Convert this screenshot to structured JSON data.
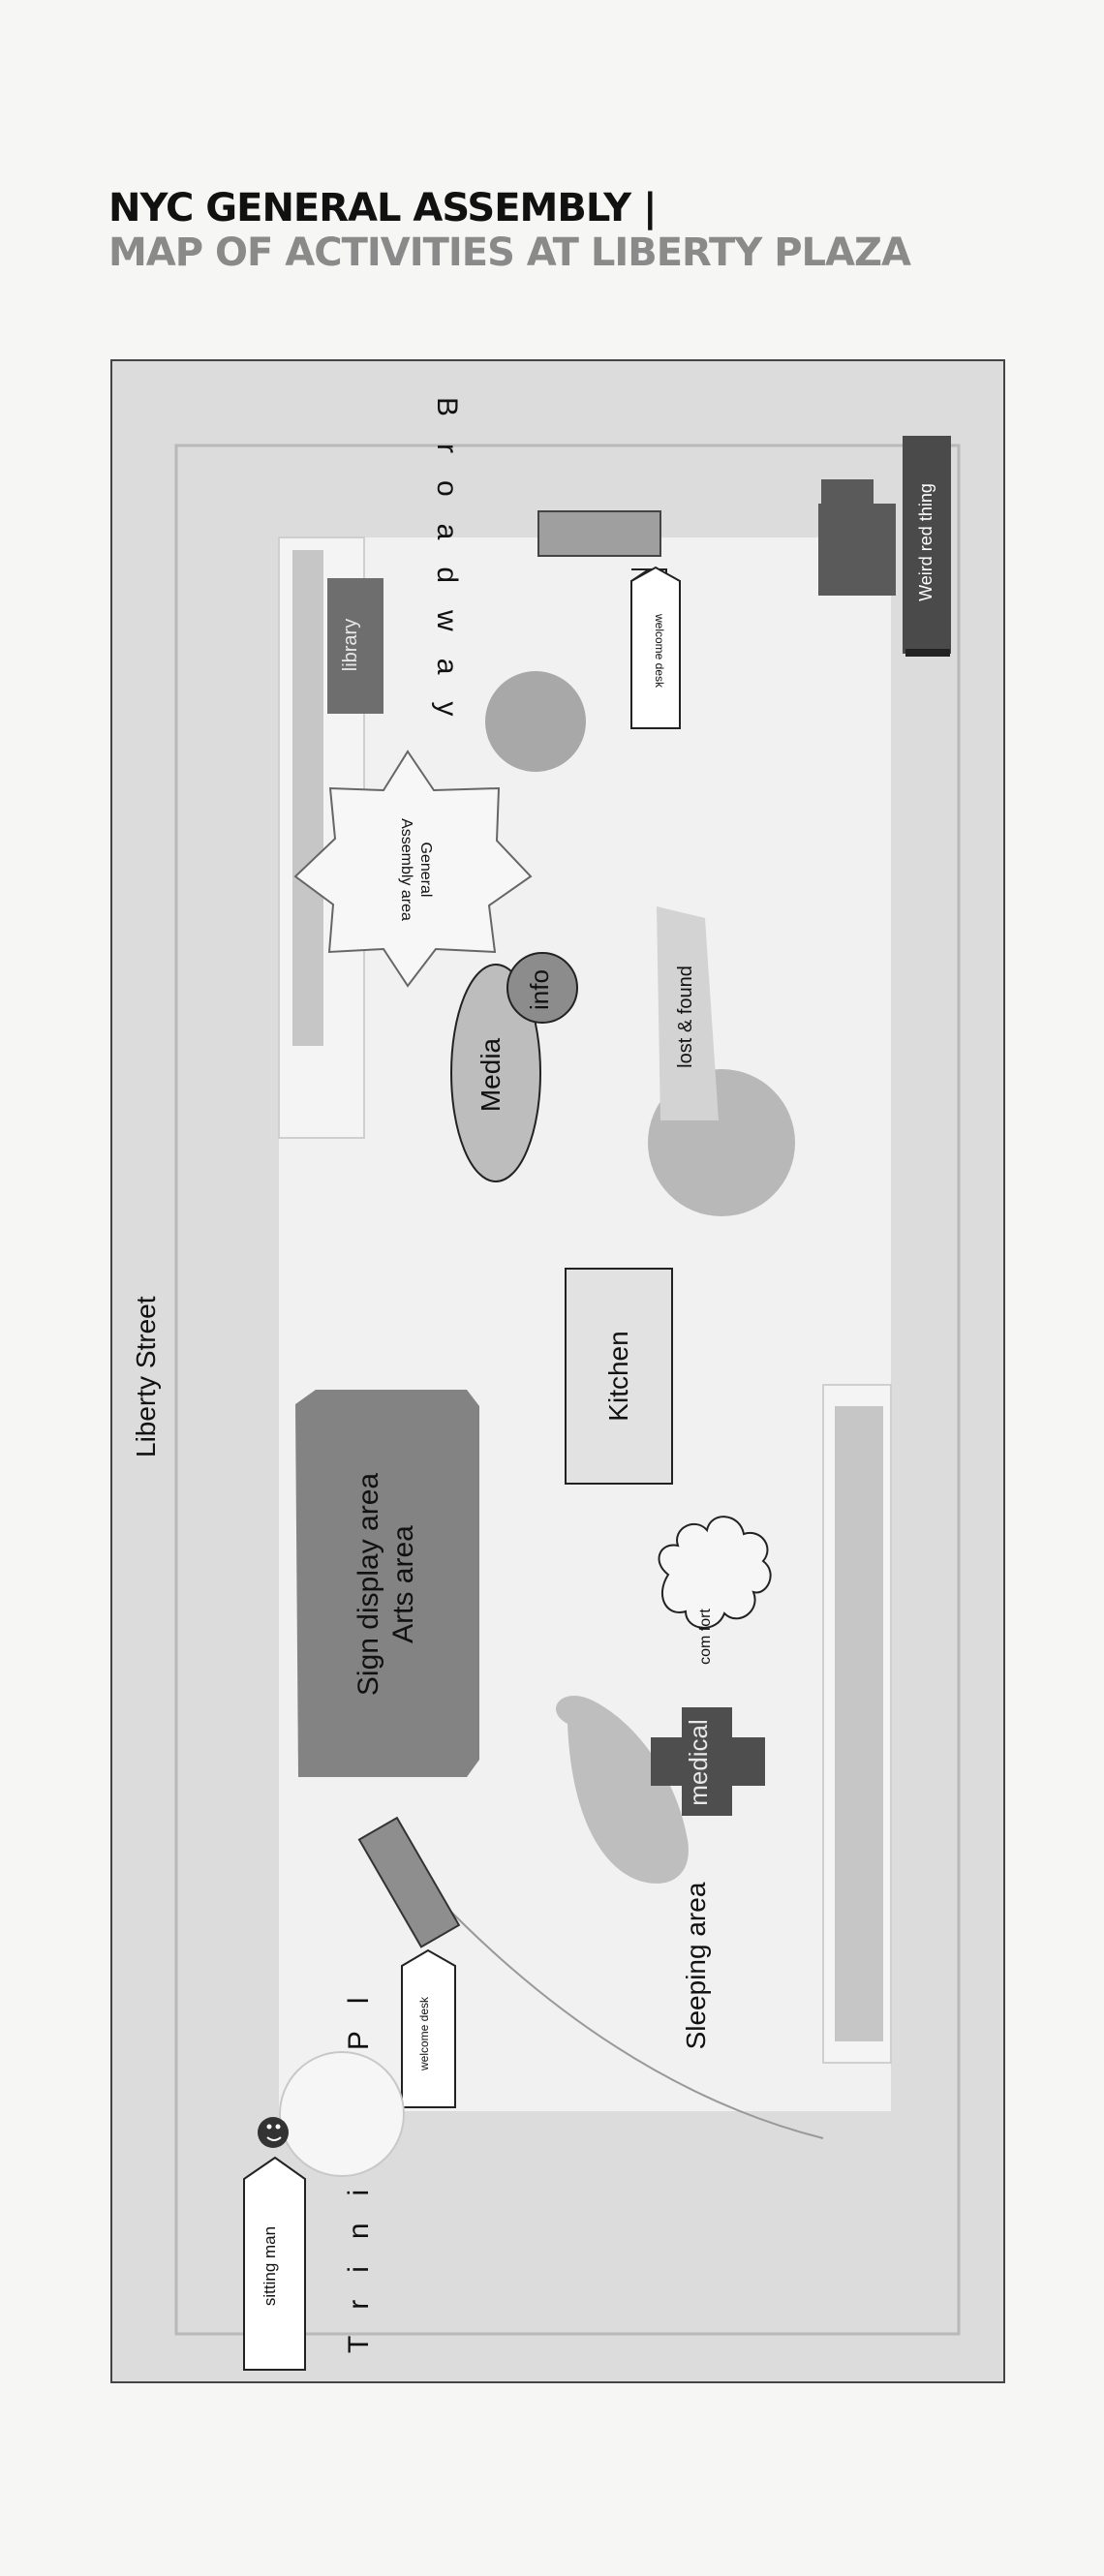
{
  "header": {
    "title": "NYC GENERAL ASSEMBLY |",
    "subtitle": "MAP OF ACTIVITIES AT LIBERTY PLAZA"
  },
  "streets": {
    "top": "Broadway",
    "bottom": "Trinity Pl",
    "left": "Liberty Street"
  },
  "areas": {
    "weird_red_thing": "Weird red thing",
    "welcome_desk_top": "welcome desk",
    "library": "library",
    "general_assembly": "General Assembly area",
    "general_assembly_line1": "General",
    "general_assembly_line2": "Assembly area",
    "lost_found": "lost & found",
    "media": "Media",
    "info": "info",
    "kitchen": "Kitchen",
    "sign_display": "Sign display area",
    "arts": "Arts area",
    "comfort": "com fort",
    "medical": "medical",
    "sleeping": "Sleeping area",
    "welcome_desk_bottom": "welcome desk",
    "sitting_man": "sitting man"
  },
  "colors": {
    "outer_bg": "#dcdcdc",
    "plaza": "#f1f1f1",
    "light_gray": "#c8c8c8",
    "mid_gray": "#a9a9a9",
    "dark_gray": "#6e6e6e",
    "very_dark": "#4a4a4a"
  }
}
